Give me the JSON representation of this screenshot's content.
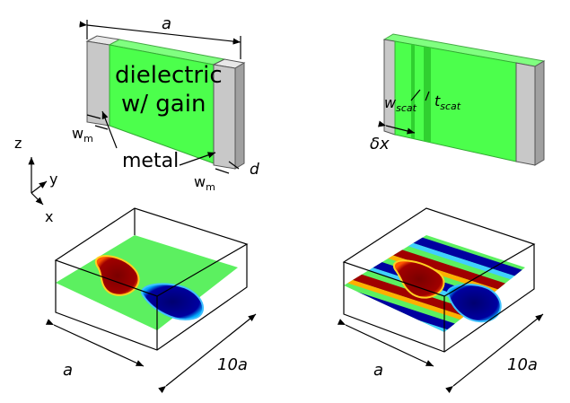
{
  "top_left": {
    "width_label": "a",
    "material": [
      "dielectric",
      "w/ gain"
    ],
    "metal": "metal",
    "wm_left": {
      "base": "w",
      "sub": "m"
    },
    "wm_right": {
      "base": "w",
      "sub": "m"
    },
    "depth": "d"
  },
  "axes": {
    "z": "z",
    "y": "y",
    "x": "x"
  },
  "top_right": {
    "wscat": {
      "base": "w",
      "sub": "scat"
    },
    "tscat": {
      "base": "t",
      "sub": "scat"
    },
    "offset": "δx"
  },
  "bottom_left": {
    "width": "a",
    "length": "10a"
  },
  "bottom_right": {
    "width": "a",
    "length": "10a"
  }
}
